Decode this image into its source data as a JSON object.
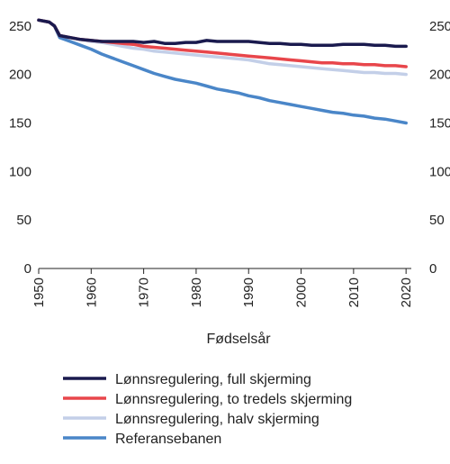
{
  "chart_data": {
    "type": "line",
    "title": "",
    "xlabel": "Fødselsår",
    "ylabel": "",
    "xlim": [
      1950,
      2021
    ],
    "ylim": [
      0,
      260
    ],
    "xticks": [
      1950,
      1960,
      1970,
      1980,
      1990,
      2000,
      2010,
      2020
    ],
    "yticks": [
      0,
      50,
      100,
      150,
      200,
      250
    ],
    "y_axis_sides": [
      "left",
      "right"
    ],
    "grid": false,
    "legend_position": "bottom",
    "x": [
      1950,
      1952,
      1953,
      1954,
      1956,
      1958,
      1960,
      1962,
      1964,
      1966,
      1968,
      1970,
      1972,
      1974,
      1976,
      1978,
      1980,
      1982,
      1984,
      1986,
      1988,
      1990,
      1992,
      1994,
      1996,
      1998,
      2000,
      2002,
      2004,
      2006,
      2008,
      2010,
      2012,
      2014,
      2016,
      2018,
      2020
    ],
    "series": [
      {
        "name": "Lønnsregulering, full skjerming",
        "color": "#1a1a4e",
        "values": [
          256,
          254,
          250,
          240,
          238,
          236,
          235,
          234,
          234,
          234,
          234,
          233,
          234,
          232,
          232,
          233,
          233,
          235,
          234,
          234,
          234,
          234,
          233,
          232,
          232,
          231,
          231,
          230,
          230,
          230,
          231,
          231,
          231,
          230,
          230,
          229,
          229
        ]
      },
      {
        "name": "Lønnsregulering, to tredels skjerming",
        "color": "#e8464b",
        "values": [
          256,
          254,
          250,
          240,
          238,
          236,
          235,
          234,
          233,
          232,
          231,
          229,
          228,
          227,
          226,
          225,
          224,
          223,
          222,
          221,
          220,
          219,
          218,
          217,
          216,
          215,
          214,
          213,
          212,
          212,
          211,
          211,
          210,
          210,
          209,
          209,
          208
        ]
      },
      {
        "name": "Lønnsregulering, halv skjerming",
        "color": "#c3cfe8",
        "values": [
          256,
          254,
          250,
          240,
          238,
          236,
          234,
          233,
          231,
          229,
          227,
          226,
          224,
          223,
          222,
          221,
          220,
          219,
          218,
          217,
          216,
          215,
          213,
          211,
          210,
          209,
          208,
          207,
          206,
          205,
          204,
          203,
          202,
          202,
          201,
          201,
          200
        ]
      },
      {
        "name": "Referansebanen",
        "color": "#4a86c8",
        "values": [
          256,
          254,
          250,
          238,
          234,
          230,
          226,
          221,
          217,
          213,
          209,
          205,
          201,
          198,
          195,
          193,
          191,
          188,
          185,
          183,
          181,
          178,
          176,
          173,
          171,
          169,
          167,
          165,
          163,
          161,
          160,
          158,
          157,
          155,
          154,
          152,
          150
        ]
      }
    ]
  }
}
